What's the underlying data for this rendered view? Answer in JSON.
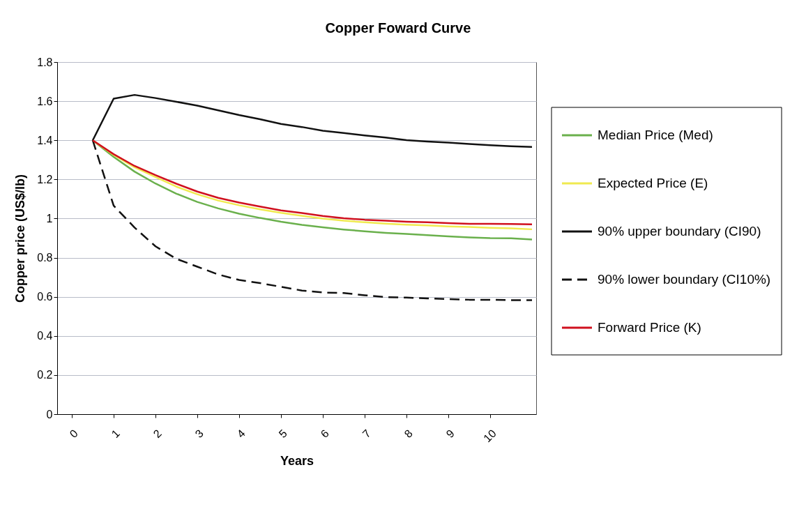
{
  "chart_data": {
    "type": "line",
    "title": "Copper Foward Curve",
    "xlabel": "Years",
    "ylabel": "Copper price (US$/lb)",
    "x": [
      0.5,
      1,
      1.5,
      2,
      2.5,
      3,
      3.5,
      4,
      4.5,
      5,
      5.5,
      6,
      6.5,
      7,
      7.5,
      8,
      8.5,
      9,
      9.5,
      10,
      10.5,
      11
    ],
    "xlim": [
      -0.35,
      11.1
    ],
    "xticks": [
      0,
      1,
      2,
      3,
      4,
      5,
      6,
      7,
      8,
      9,
      10
    ],
    "ylim": [
      0,
      1.8
    ],
    "yticks": [
      0,
      0.2,
      0.4,
      0.6,
      0.8,
      1,
      1.2,
      1.4,
      1.6,
      1.8
    ],
    "grid": "y",
    "legend": "right",
    "marker": "none",
    "series": [
      {
        "name": "Median Price (Med)",
        "color": "#6ab04c",
        "line_style": "solid",
        "values": [
          1.4,
          1.315,
          1.24,
          1.179,
          1.127,
          1.085,
          1.052,
          1.025,
          1.003,
          0.984,
          0.968,
          0.955,
          0.944,
          0.935,
          0.927,
          0.921,
          0.915,
          0.909,
          0.904,
          0.9,
          0.899,
          0.893
        ]
      },
      {
        "name": "Expected Price (E)",
        "color": "#f0ea50",
        "line_style": "solid",
        "values": [
          1.4,
          1.325,
          1.262,
          1.212,
          1.163,
          1.124,
          1.092,
          1.068,
          1.047,
          1.029,
          1.014,
          1.0,
          0.989,
          0.981,
          0.974,
          0.969,
          0.965,
          0.96,
          0.957,
          0.953,
          0.95,
          0.945
        ]
      },
      {
        "name": "90% upper boundary (CI90)",
        "color": "#111111",
        "line_style": "solid",
        "values": [
          1.4,
          1.613,
          1.632,
          1.616,
          1.597,
          1.577,
          1.553,
          1.529,
          1.508,
          1.484,
          1.468,
          1.449,
          1.437,
          1.425,
          1.414,
          1.401,
          1.394,
          1.388,
          1.381,
          1.375,
          1.37,
          1.366
        ]
      },
      {
        "name": "90% lower boundary (CI10%)",
        "color": "#111111",
        "line_style": "dashed",
        "values": [
          1.4,
          1.066,
          0.954,
          0.858,
          0.794,
          0.754,
          0.714,
          0.686,
          0.67,
          0.651,
          0.632,
          0.622,
          0.619,
          0.608,
          0.598,
          0.596,
          0.592,
          0.588,
          0.585,
          0.585,
          0.583,
          0.583
        ]
      },
      {
        "name": "Forward Price (K)",
        "color": "#d0101e",
        "line_style": "solid",
        "values": [
          1.4,
          1.329,
          1.269,
          1.222,
          1.178,
          1.138,
          1.106,
          1.082,
          1.061,
          1.042,
          1.028,
          1.013,
          1.002,
          0.994,
          0.989,
          0.984,
          0.981,
          0.977,
          0.973,
          0.973,
          0.972,
          0.97
        ]
      }
    ]
  }
}
